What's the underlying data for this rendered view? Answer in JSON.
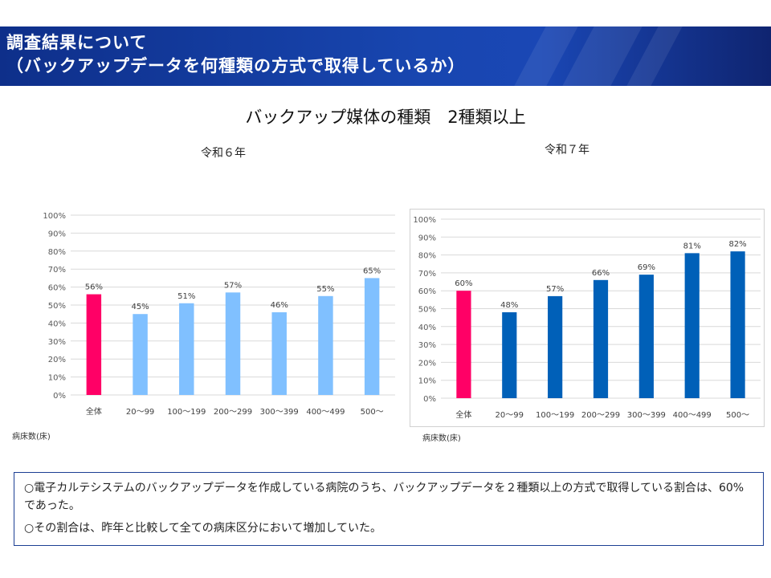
{
  "header": {
    "title_line1": "調査結果について",
    "title_line2": "（バックアップデータを何種類の方式で取得しているか）"
  },
  "main_title": "バックアップ媒体の種類　2種類以上",
  "colors": {
    "left_highlight": "#ff0066",
    "left_bar": "#80c0ff",
    "right_highlight": "#ff0066",
    "right_bar": "#0060b8",
    "header_bg": "#1846b0"
  },
  "chart_data": [
    {
      "type": "bar",
      "title": "令和６年",
      "categories": [
        "全体",
        "20〜99",
        "100〜199",
        "200〜299",
        "300〜399",
        "400〜499",
        "500〜"
      ],
      "values": [
        56,
        45,
        51,
        57,
        46,
        55,
        65
      ],
      "data_labels": [
        "56%",
        "45%",
        "51%",
        "57%",
        "46%",
        "55%",
        "65%"
      ],
      "ylim": [
        0,
        100
      ],
      "yticks": [
        "0%",
        "10%",
        "20%",
        "30%",
        "40%",
        "50%",
        "60%",
        "70%",
        "80%",
        "90%",
        "100%"
      ],
      "xlabel": "病床数(床)",
      "grid": true
    },
    {
      "type": "bar",
      "title": "令和７年",
      "categories": [
        "全体",
        "20〜99",
        "100〜199",
        "200〜299",
        "300〜399",
        "400〜499",
        "500〜"
      ],
      "values": [
        60,
        48,
        57,
        66,
        69,
        81,
        82
      ],
      "data_labels": [
        "60%",
        "48%",
        "57%",
        "66%",
        "69%",
        "81%",
        "82%"
      ],
      "ylim": [
        0,
        100
      ],
      "yticks": [
        "0%",
        "10%",
        "20%",
        "30%",
        "40%",
        "50%",
        "60%",
        "70%",
        "80%",
        "90%",
        "100%"
      ],
      "xlabel": "病床数(床)",
      "grid": true
    }
  ],
  "notes": [
    "○電子カルテシステムのバックアップデータを作成している病院のうち、バックアップデータを２種類以上の方式で取得している割合は、60%であった。",
    "○その割合は、昨年と比較して全ての病床区分において増加していた。"
  ]
}
